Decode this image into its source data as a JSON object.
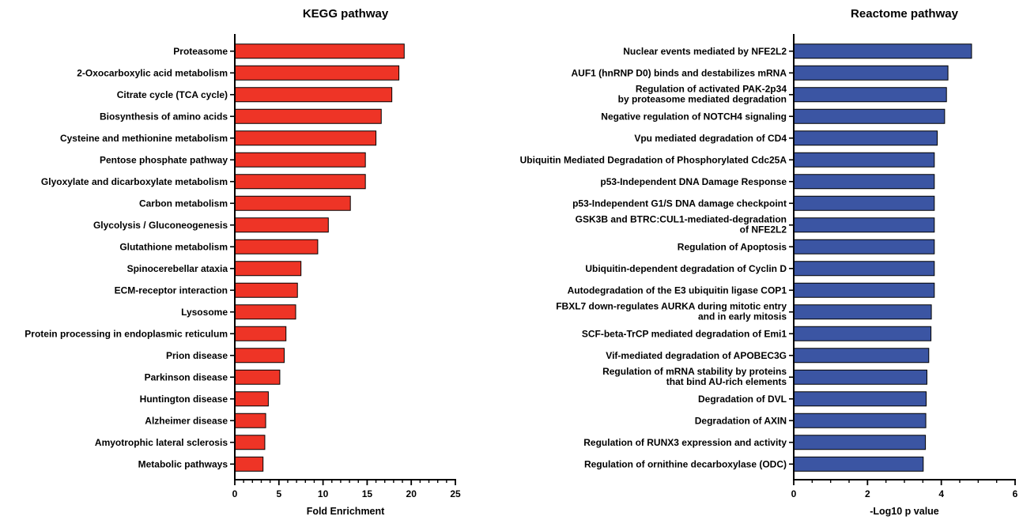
{
  "chart_data": [
    {
      "type": "bar",
      "orientation": "horizontal",
      "title": "KEGG pathway",
      "xlabel": "Fold Enrichment",
      "ylabel": "",
      "xlim": [
        0,
        25
      ],
      "xticks": [
        "0",
        "5",
        "10",
        "15",
        "20",
        "25"
      ],
      "bar_color": "#ee3426",
      "categories": [
        "Proteasome",
        "2-Oxocarboxylic acid metabolism",
        "Citrate cycle (TCA cycle)",
        "Biosynthesis of amino acids",
        "Cysteine and methionine metabolism",
        "Pentose phosphate pathway",
        "Glyoxylate and dicarboxylate metabolism",
        "Carbon metabolism",
        "Glycolysis / Gluconeogenesis",
        "Glutathione metabolism",
        "Spinocerebellar ataxia",
        "ECM-receptor interaction",
        "Lysosome",
        "Protein processing in endoplasmic reticulum",
        "Prion disease",
        "Parkinson disease",
        "Huntington disease",
        "Alzheimer disease",
        "Amyotrophic lateral sclerosis",
        "Metabolic pathways"
      ],
      "values": [
        19.2,
        18.6,
        17.8,
        16.6,
        16.0,
        14.8,
        14.8,
        13.1,
        10.6,
        9.4,
        7.5,
        7.1,
        6.9,
        5.8,
        5.6,
        5.1,
        3.8,
        3.5,
        3.4,
        3.2
      ]
    },
    {
      "type": "bar",
      "orientation": "horizontal",
      "title": "Reactome pathway",
      "xlabel": "-Log10 p value",
      "ylabel": "",
      "xlim": [
        0,
        6
      ],
      "xticks": [
        "0",
        "2",
        "4",
        "6"
      ],
      "bar_color": "#3b55a3",
      "categories": [
        "Nuclear events mediated by NFE2L2",
        "AUF1 (hnRNP D0) binds and destabilizes mRNA",
        "Regulation of activated PAK-2p34\nby proteasome mediated degradation",
        "Negative regulation of NOTCH4 signaling",
        "Vpu mediated degradation of CD4",
        "Ubiquitin Mediated Degradation of Phosphorylated Cdc25A",
        "p53-Independent DNA Damage Response",
        "p53-Independent G1/S DNA damage checkpoint",
        "GSK3B and BTRC:CUL1-mediated-degradation\nof NFE2L2",
        "Regulation of Apoptosis",
        "Ubiquitin-dependent degradation of Cyclin D",
        "Autodegradation of the E3 ubiquitin ligase COP1",
        "FBXL7 down-regulates AURKA during mitotic entry\nand in early mitosis",
        "SCF-beta-TrCP mediated degradation of Emi1",
        "Vif-mediated degradation of APOBEC3G",
        "Regulation of mRNA stability by proteins\nthat bind AU-rich elements",
        "Degradation of DVL",
        "Degradation of AXIN",
        "Regulation of RUNX3 expression and activity",
        "Regulation of ornithine decarboxylase (ODC)"
      ],
      "values": [
        4.82,
        4.18,
        4.14,
        4.09,
        3.89,
        3.81,
        3.81,
        3.81,
        3.81,
        3.81,
        3.81,
        3.81,
        3.73,
        3.72,
        3.66,
        3.61,
        3.59,
        3.58,
        3.57,
        3.51
      ]
    }
  ]
}
